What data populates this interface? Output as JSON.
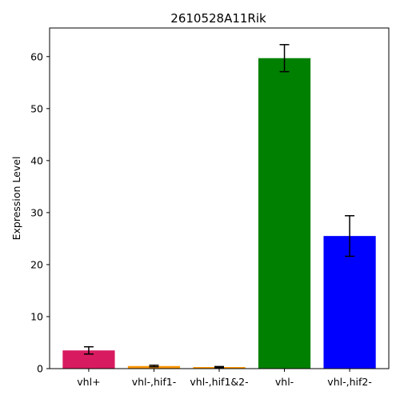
{
  "chart_data": {
    "type": "bar",
    "title": "2610528A11Rik",
    "xlabel": "",
    "ylabel": "Expression Level",
    "ylim": [
      0,
      65.5
    ],
    "yticks": [
      0,
      10,
      20,
      30,
      40,
      50,
      60
    ],
    "categories": [
      "vhl+",
      "vhl-,hif1-",
      "vhl-,hif1&2-",
      "vhl-",
      "vhl-,hif2-"
    ],
    "values": [
      3.5,
      0.5,
      0.3,
      59.7,
      25.5
    ],
    "errors": [
      0.7,
      0.15,
      0.1,
      2.6,
      3.9
    ],
    "colors": [
      "#d81b60",
      "#ff9800",
      "#ff9800",
      "#008000",
      "#0000ff"
    ],
    "error_color": "#000000",
    "grid": false,
    "legend": "none"
  }
}
